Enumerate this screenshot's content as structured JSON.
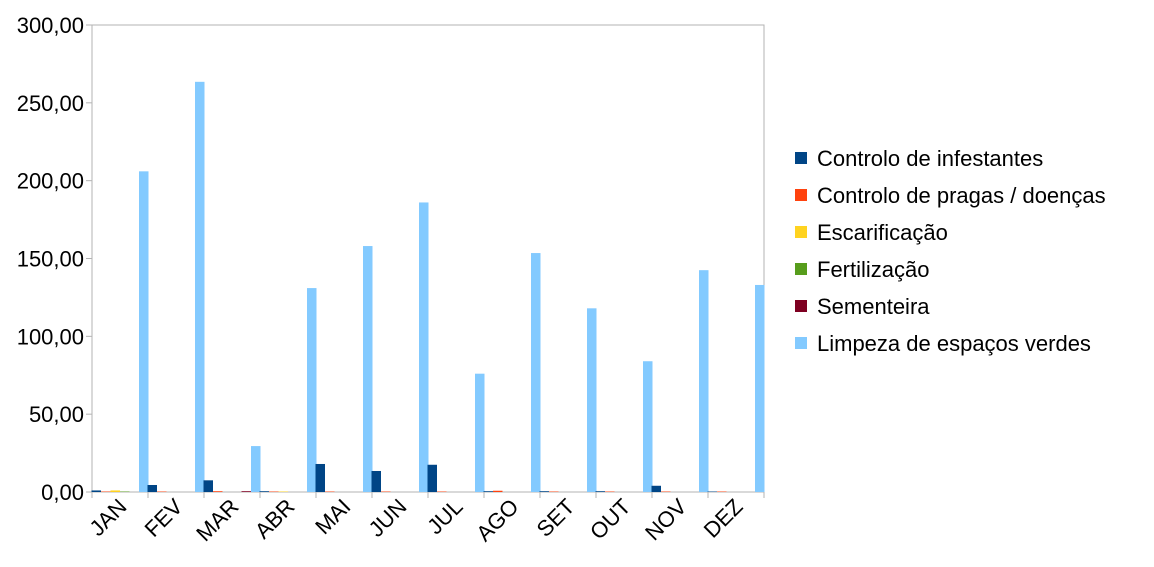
{
  "chart_data": {
    "type": "bar",
    "title": "",
    "xlabel": "",
    "ylabel": "",
    "ylim": [
      0,
      300
    ],
    "y_ticks": [
      0,
      50,
      100,
      150,
      200,
      250,
      300
    ],
    "y_tick_labels": [
      "0,00",
      "50,00",
      "100,00",
      "150,00",
      "200,00",
      "250,00",
      "300,00"
    ],
    "grid": false,
    "legend_position": "right",
    "categories": [
      "JAN",
      "FEV",
      "MAR",
      "ABR",
      "MAI",
      "JUN",
      "JUL",
      "AGO",
      "SET",
      "OUT",
      "NOV",
      "DEZ"
    ],
    "series": [
      {
        "name": "Controlo de infestantes",
        "color": "#004586",
        "values": [
          1.0,
          4.5,
          7.5,
          0.5,
          18.0,
          13.5,
          17.5,
          0.5,
          0.5,
          0.5,
          4.0,
          0.3
        ]
      },
      {
        "name": "Controlo de pragas / doenças",
        "color": "#ff420e",
        "values": [
          0.3,
          0.3,
          0.5,
          0.3,
          0.3,
          0.3,
          0.3,
          0.8,
          0.3,
          0.3,
          0.3,
          0.3
        ]
      },
      {
        "name": "Escarificação",
        "color": "#ffd320",
        "values": [
          1.0,
          0.0,
          0.0,
          0.3,
          0.0,
          0.0,
          0.0,
          0.0,
          0.0,
          0.0,
          0.0,
          0.0
        ]
      },
      {
        "name": "Fertilização",
        "color": "#579d1c",
        "values": [
          0.3,
          0.0,
          0.0,
          0.0,
          0.0,
          0.0,
          0.0,
          0.0,
          0.0,
          0.0,
          0.0,
          0.0
        ]
      },
      {
        "name": "Sementeira",
        "color": "#7e0021",
        "values": [
          0.0,
          0.0,
          0.5,
          0.0,
          0.0,
          0.0,
          0.0,
          0.0,
          0.0,
          0.0,
          0.0,
          0.0
        ]
      },
      {
        "name": "Limpeza de espaços verdes",
        "color": "#83caff",
        "values": [
          206.0,
          263.5,
          29.5,
          131.0,
          158.0,
          186.0,
          76.0,
          153.5,
          118.0,
          84.0,
          142.5,
          133.0
        ]
      }
    ]
  }
}
